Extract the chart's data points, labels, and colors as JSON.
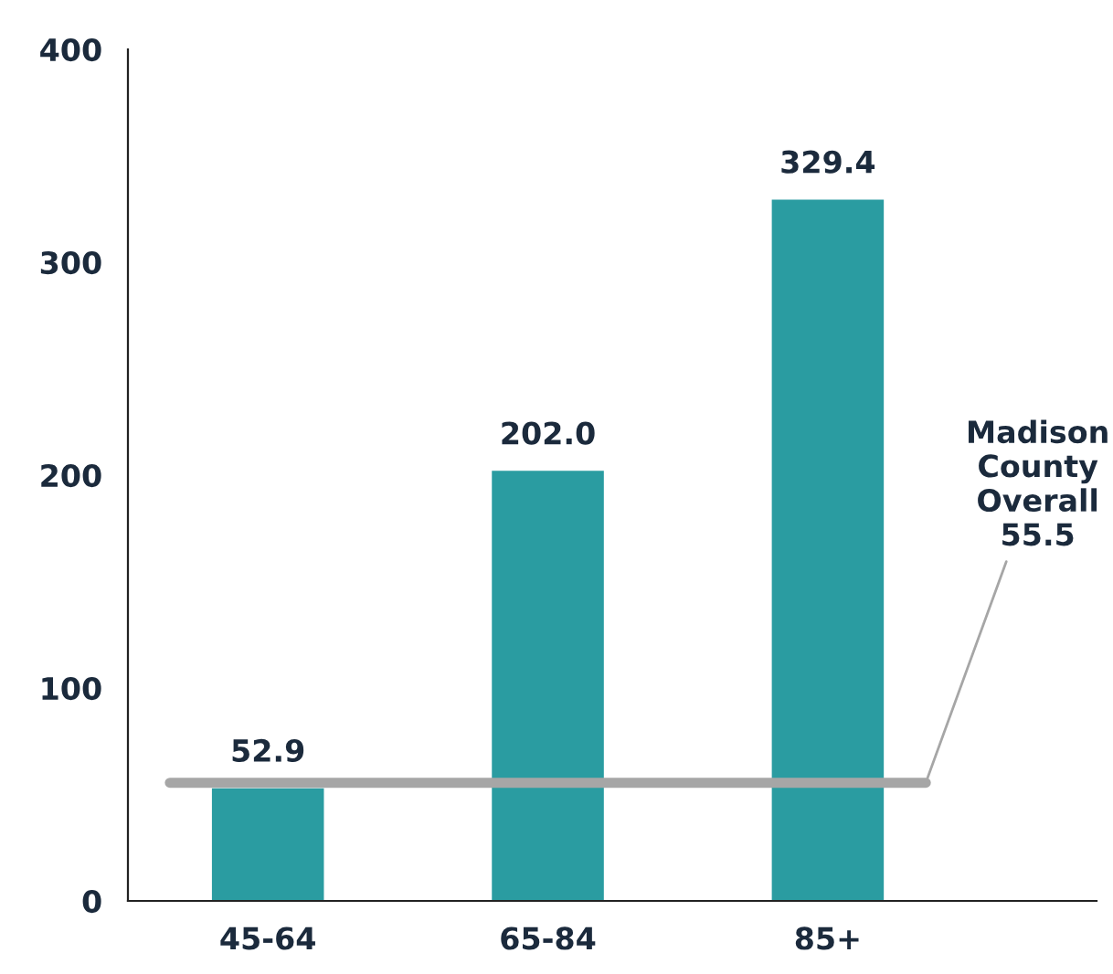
{
  "chart_data": {
    "type": "bar",
    "categories": [
      "45-64",
      "65-84",
      "85+"
    ],
    "values": [
      52.9,
      202.0,
      329.4
    ],
    "color": "#2a9ca1",
    "ylim": [
      0,
      400
    ],
    "yticks": [
      0,
      100,
      200,
      300,
      400
    ],
    "grid": false,
    "value_labels": [
      "52.9",
      "202.0",
      "329.4"
    ],
    "ref_lines": [
      {
        "axis": "y",
        "value": 55.5,
        "label": "Madison\nCounty\nOverall\n55.5",
        "color": "#a6a6a6"
      }
    ]
  }
}
